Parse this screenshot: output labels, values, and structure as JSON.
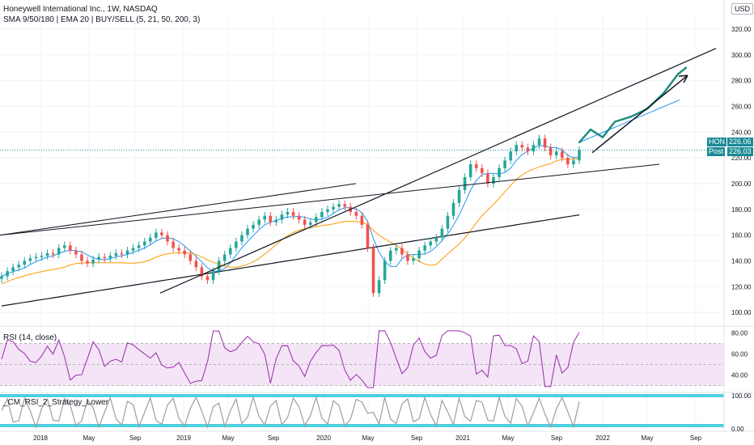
{
  "header": {
    "title": "Honeywell International Inc., 1W, NASDAQ",
    "indicators": "SMA 9/50/180 | EMA 20 | BUY/SELL (5, 21, 50, 200, 3)"
  },
  "currency": "USD",
  "last_price": {
    "symbol_tag": "HON",
    "value": "226.06",
    "post_tag": "Post",
    "post_value": "226.03"
  },
  "rsi_title": "RSI (14, close)",
  "cm_title": "_CM_RSI_2_Strategy_Lower",
  "chart_data": [
    {
      "type": "candlestick",
      "y_ticks": [
        "320.00",
        "300.00",
        "280.00",
        "260.00",
        "240.00",
        "220.00",
        "200.00",
        "180.00",
        "160.00",
        "140.00",
        "120.00",
        "100.00"
      ],
      "x_ticks": [
        "2018",
        "May",
        "Sep",
        "2019",
        "May",
        "Sep",
        "2020",
        "May",
        "Sep",
        "2021",
        "May",
        "Sep",
        "2022",
        "May",
        "Sep"
      ],
      "ylim": [
        90,
        330
      ],
      "series": [
        {
          "name": "close",
          "values": [
            128,
            132,
            135,
            137,
            140,
            142,
            143,
            144,
            146,
            145,
            150,
            152,
            148,
            145,
            140,
            138,
            141,
            143,
            142,
            144,
            146,
            145,
            148,
            150,
            152,
            155,
            158,
            162,
            160,
            155,
            150,
            148,
            145,
            140,
            135,
            128,
            125,
            132,
            140,
            145,
            150,
            155,
            160,
            165,
            168,
            172,
            175,
            170,
            172,
            176,
            178,
            175,
            172,
            168,
            170,
            174,
            178,
            180,
            182,
            184,
            182,
            178,
            175,
            168,
            150,
            115,
            125,
            140,
            148,
            150,
            145,
            140,
            142,
            148,
            152,
            155,
            158,
            165,
            175,
            185,
            195,
            205,
            215,
            212,
            208,
            200,
            205,
            212,
            218,
            225,
            230,
            228,
            225,
            230,
            235,
            228,
            222,
            225,
            220,
            215,
            218,
            226
          ]
        }
      ],
      "colors": {
        "up": "#26a69a",
        "down": "#ef5350",
        "sma_short": "#2196f3",
        "ema": "#ff9800",
        "sma_long": "#131722",
        "projection": "#1a8a7a"
      }
    },
    {
      "type": "line",
      "title": "RSI (14, close)",
      "y_ticks": [
        "80.00",
        "60.00",
        "40.00"
      ],
      "ylim": [
        25,
        85
      ],
      "band": [
        30,
        70
      ]
    },
    {
      "type": "line",
      "title": "_CM_RSI_2_Strategy_Lower",
      "y_ticks": [
        "100.00",
        "0.00"
      ],
      "ylim": [
        0,
        100
      ]
    }
  ]
}
